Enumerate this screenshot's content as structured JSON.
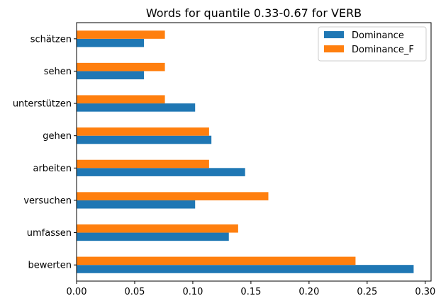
{
  "chart_data": {
    "type": "bar",
    "orientation": "horizontal",
    "title": "Words for quantile 0.33-0.67 for VERB",
    "xlabel": "",
    "ylabel": "",
    "xlim": [
      0,
      0.305
    ],
    "xticks": [
      0.0,
      0.05,
      0.1,
      0.15,
      0.2,
      0.25,
      0.3
    ],
    "xtick_labels": [
      "0.00",
      "0.05",
      "0.10",
      "0.15",
      "0.20",
      "0.25",
      "0.30"
    ],
    "categories": [
      "bewerten",
      "umfassen",
      "versuchen",
      "arbeiten",
      "gehen",
      "unterstützen",
      "sehen",
      "schätzen"
    ],
    "series": [
      {
        "name": "Dominance",
        "color": "#1f77b4",
        "values": [
          0.29,
          0.131,
          0.102,
          0.145,
          0.116,
          0.102,
          0.058,
          0.058
        ]
      },
      {
        "name": "Dominance_F",
        "color": "#ff7f0e",
        "values": [
          0.24,
          0.139,
          0.165,
          0.114,
          0.114,
          0.076,
          0.076,
          0.076
        ]
      }
    ],
    "grid": false,
    "legend": "top-right"
  }
}
